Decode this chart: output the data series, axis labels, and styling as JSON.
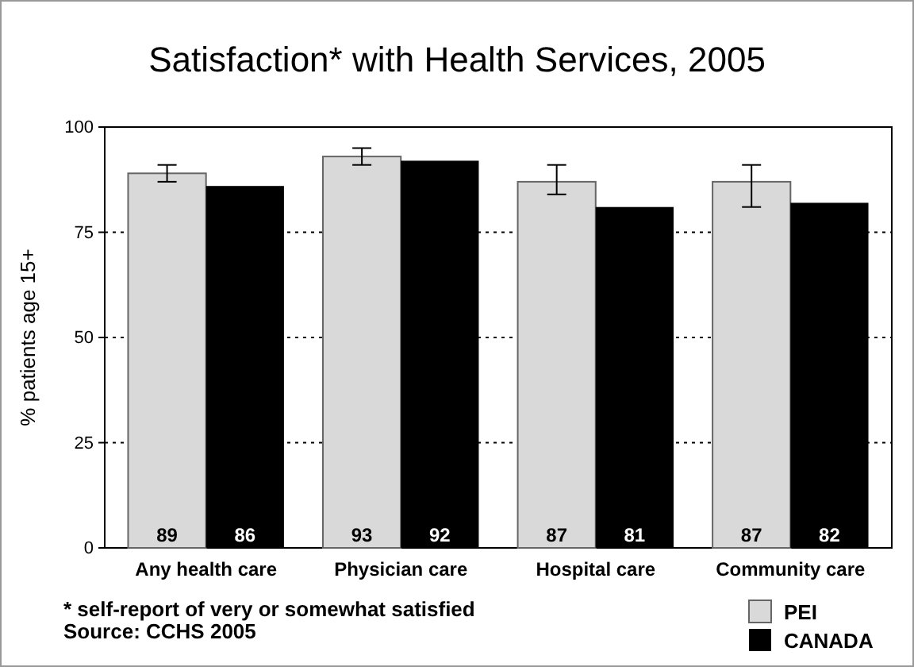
{
  "chart_data": {
    "type": "bar",
    "title": "Satisfaction* with Health Services, 2005",
    "ylabel": "% patients age 15+",
    "categories": [
      "Any health care",
      "Physician care",
      "Hospital care",
      "Community care"
    ],
    "series": [
      {
        "name": "PEI",
        "color": "#d9d9d9",
        "values": [
          89,
          93,
          87,
          87
        ],
        "errors": [
          [
            87,
            91
          ],
          [
            91,
            95
          ],
          [
            84,
            91
          ],
          [
            81,
            91
          ]
        ]
      },
      {
        "name": "CANADA",
        "color": "#000000",
        "values": [
          86,
          92,
          81,
          82
        ]
      }
    ],
    "ylim": [
      0,
      100
    ],
    "yticks": [
      0,
      25,
      50,
      75,
      100
    ],
    "grid": "y",
    "data_labels": true,
    "legend": "bottom right",
    "annotations": [
      "* self-report of very or somewhat satisfied",
      "Source: CCHS 2005"
    ]
  }
}
